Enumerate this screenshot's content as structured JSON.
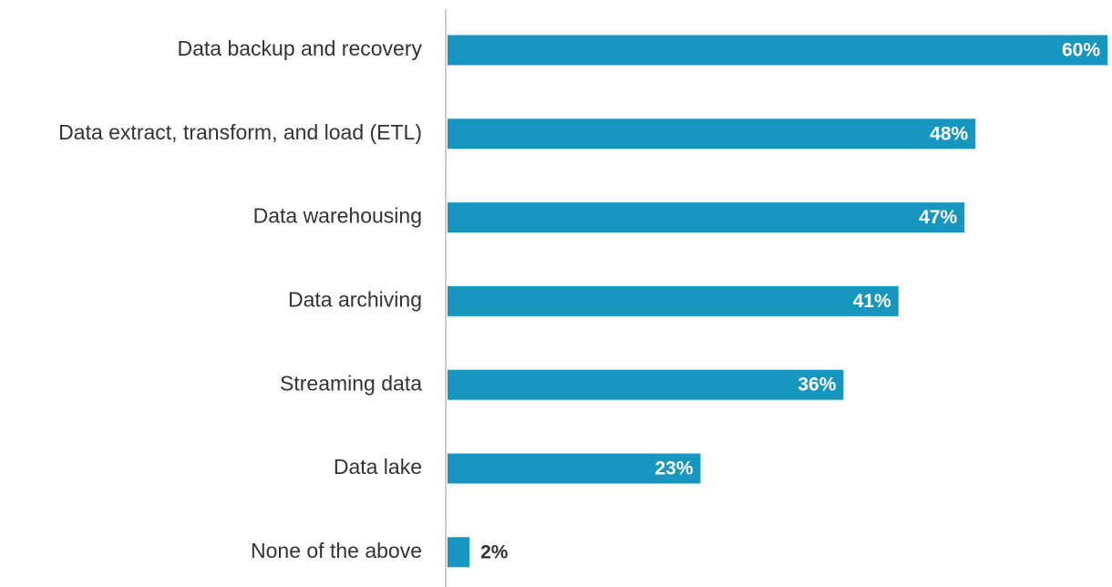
{
  "chart_data": {
    "type": "bar",
    "orientation": "horizontal",
    "categories": [
      "Data backup and recovery",
      "Data extract, transform, and load (ETL)",
      "Data warehousing",
      "Data archiving",
      "Streaming data",
      "Data lake",
      "None of the above"
    ],
    "values": [
      60,
      48,
      47,
      41,
      36,
      23,
      2
    ],
    "value_labels": [
      "60%",
      "48%",
      "47%",
      "41%",
      "36%",
      "23%",
      "2%"
    ],
    "color": "#1796bf"
  }
}
